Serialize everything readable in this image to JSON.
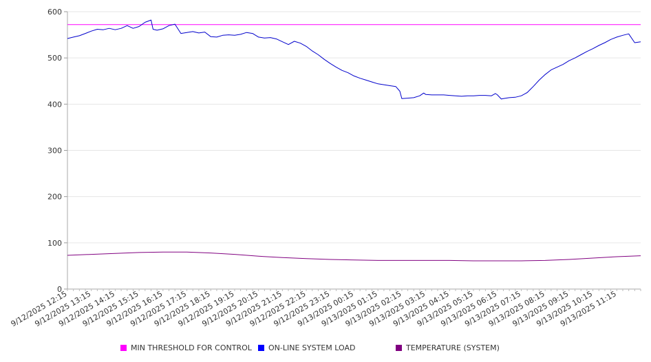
{
  "chart_data": {
    "type": "line",
    "title": "",
    "xlabel": "",
    "ylabel": "",
    "ylim": [
      0,
      600
    ],
    "yticks": [
      0,
      100,
      200,
      300,
      400,
      500,
      600
    ],
    "grid": true,
    "legend_position": "bottom",
    "x_tick_labels": [
      "9/12/2025 12:15",
      "9/12/2025 13:15",
      "9/12/2025 14:15",
      "9/12/2025 15:15",
      "9/12/2025 16:15",
      "9/12/2025 17:15",
      "9/12/2025 18:15",
      "9/12/2025 19:15",
      "9/12/2025 20:15",
      "9/12/2025 21:15",
      "9/12/2025 22:15",
      "9/12/2025 23:15",
      "9/13/2025 00:15",
      "9/13/2025 01:15",
      "9/13/2025 02:15",
      "9/13/2025 03:15",
      "9/13/2025 04:15",
      "9/13/2025 05:15",
      "9/13/2025 06:15",
      "9/13/2025 07:15",
      "9/13/2025 08:15",
      "9/13/2025 09:15",
      "9/13/2025 10:15",
      "9/13/2025 11:15"
    ],
    "x_range": [
      "9/12/2025 12:15",
      "9/13/2025 12:15"
    ],
    "series": [
      {
        "name": "MIN THRESHOLD FOR CONTROL",
        "color": "#ff00ff",
        "points": [
          [
            "9/12/2025 12:15",
            572
          ],
          [
            "9/13/2025 12:15",
            572
          ]
        ]
      },
      {
        "name": "ON-LINE SYSTEM LOAD",
        "color": "#0000cc",
        "points": [
          [
            "9/12/2025 12:15",
            542
          ],
          [
            "9/12/2025 12:30",
            545
          ],
          [
            "9/12/2025 12:45",
            548
          ],
          [
            "9/12/2025 13:00",
            553
          ],
          [
            "9/12/2025 13:15",
            558
          ],
          [
            "9/12/2025 13:30",
            562
          ],
          [
            "9/12/2025 13:45",
            561
          ],
          [
            "9/12/2025 14:00",
            564
          ],
          [
            "9/12/2025 14:15",
            561
          ],
          [
            "9/12/2025 14:30",
            564
          ],
          [
            "9/12/2025 14:45",
            570
          ],
          [
            "9/12/2025 15:00",
            564
          ],
          [
            "9/12/2025 15:15",
            568
          ],
          [
            "9/12/2025 15:30",
            577
          ],
          [
            "9/12/2025 15:45",
            582
          ],
          [
            "9/12/2025 15:50",
            562
          ],
          [
            "9/12/2025 16:00",
            560
          ],
          [
            "9/12/2025 16:15",
            563
          ],
          [
            "9/12/2025 16:30",
            570
          ],
          [
            "9/12/2025 16:45",
            573
          ],
          [
            "9/12/2025 17:00",
            553
          ],
          [
            "9/12/2025 17:15",
            555
          ],
          [
            "9/12/2025 17:30",
            557
          ],
          [
            "9/12/2025 17:45",
            554
          ],
          [
            "9/12/2025 18:00",
            556
          ],
          [
            "9/12/2025 18:15",
            546
          ],
          [
            "9/12/2025 18:30",
            545
          ],
          [
            "9/12/2025 18:45",
            549
          ],
          [
            "9/12/2025 19:00",
            550
          ],
          [
            "9/12/2025 19:15",
            549
          ],
          [
            "9/12/2025 19:30",
            551
          ],
          [
            "9/12/2025 19:45",
            555
          ],
          [
            "9/12/2025 20:00",
            553
          ],
          [
            "9/12/2025 20:15",
            545
          ],
          [
            "9/12/2025 20:30",
            543
          ],
          [
            "9/12/2025 20:45",
            544
          ],
          [
            "9/12/2025 21:00",
            541
          ],
          [
            "9/12/2025 21:15",
            535
          ],
          [
            "9/12/2025 21:30",
            529
          ],
          [
            "9/12/2025 21:45",
            536
          ],
          [
            "9/12/2025 22:00",
            532
          ],
          [
            "9/12/2025 22:15",
            525
          ],
          [
            "9/12/2025 22:30",
            515
          ],
          [
            "9/12/2025 22:45",
            507
          ],
          [
            "9/12/2025 23:00",
            497
          ],
          [
            "9/12/2025 23:15",
            488
          ],
          [
            "9/12/2025 23:30",
            480
          ],
          [
            "9/12/2025 23:45",
            473
          ],
          [
            "9/13/2025 00:00",
            468
          ],
          [
            "9/13/2025 00:15",
            461
          ],
          [
            "9/13/2025 00:30",
            456
          ],
          [
            "9/13/2025 00:45",
            452
          ],
          [
            "9/13/2025 01:00",
            448
          ],
          [
            "9/13/2025 01:15",
            444
          ],
          [
            "9/13/2025 01:30",
            442
          ],
          [
            "9/13/2025 01:45",
            440
          ],
          [
            "9/13/2025 02:00",
            438
          ],
          [
            "9/13/2025 02:10",
            428
          ],
          [
            "9/13/2025 02:15",
            412
          ],
          [
            "9/13/2025 02:30",
            413
          ],
          [
            "9/13/2025 02:45",
            414
          ],
          [
            "9/13/2025 03:00",
            418
          ],
          [
            "9/13/2025 03:10",
            424
          ],
          [
            "9/13/2025 03:15",
            421
          ],
          [
            "9/13/2025 03:30",
            420
          ],
          [
            "9/13/2025 03:45",
            420
          ],
          [
            "9/13/2025 04:00",
            420
          ],
          [
            "9/13/2025 04:15",
            419
          ],
          [
            "9/13/2025 04:30",
            418
          ],
          [
            "9/13/2025 04:45",
            417
          ],
          [
            "9/13/2025 05:00",
            418
          ],
          [
            "9/13/2025 05:15",
            418
          ],
          [
            "9/13/2025 05:30",
            419
          ],
          [
            "9/13/2025 05:45",
            419
          ],
          [
            "9/13/2025 06:00",
            418
          ],
          [
            "9/13/2025 06:10",
            423
          ],
          [
            "9/13/2025 06:15",
            420
          ],
          [
            "9/13/2025 06:25",
            411
          ],
          [
            "9/13/2025 06:30",
            412
          ],
          [
            "9/13/2025 06:45",
            414
          ],
          [
            "9/13/2025 07:00",
            415
          ],
          [
            "9/13/2025 07:15",
            418
          ],
          [
            "9/13/2025 07:30",
            425
          ],
          [
            "9/13/2025 07:45",
            438
          ],
          [
            "9/13/2025 08:00",
            452
          ],
          [
            "9/13/2025 08:15",
            464
          ],
          [
            "9/13/2025 08:30",
            474
          ],
          [
            "9/13/2025 08:45",
            480
          ],
          [
            "9/13/2025 09:00",
            486
          ],
          [
            "9/13/2025 09:15",
            494
          ],
          [
            "9/13/2025 09:30",
            500
          ],
          [
            "9/13/2025 09:45",
            507
          ],
          [
            "9/13/2025 10:00",
            514
          ],
          [
            "9/13/2025 10:15",
            520
          ],
          [
            "9/13/2025 10:30",
            527
          ],
          [
            "9/13/2025 10:45",
            533
          ],
          [
            "9/13/2025 11:00",
            540
          ],
          [
            "9/13/2025 11:15",
            545
          ],
          [
            "9/13/2025 11:30",
            549
          ],
          [
            "9/13/2025 11:45",
            552
          ],
          [
            "9/13/2025 12:00",
            533
          ],
          [
            "9/13/2025 12:15",
            535
          ]
        ]
      },
      {
        "name": "TEMPERATURE (SYSTEM)",
        "color": "#800080",
        "points": [
          [
            "9/12/2025 12:15",
            73
          ],
          [
            "9/12/2025 13:15",
            75
          ],
          [
            "9/12/2025 14:15",
            77
          ],
          [
            "9/12/2025 15:15",
            79
          ],
          [
            "9/12/2025 16:15",
            80
          ],
          [
            "9/12/2025 17:15",
            80
          ],
          [
            "9/12/2025 18:15",
            78
          ],
          [
            "9/12/2025 19:15",
            75
          ],
          [
            "9/12/2025 20:15",
            71
          ],
          [
            "9/12/2025 21:15",
            68
          ],
          [
            "9/12/2025 22:15",
            66
          ],
          [
            "9/12/2025 23:15",
            64
          ],
          [
            "9/13/2025 00:15",
            63
          ],
          [
            "9/13/2025 01:15",
            62
          ],
          [
            "9/13/2025 02:15",
            62
          ],
          [
            "9/13/2025 03:15",
            62
          ],
          [
            "9/13/2025 04:15",
            62
          ],
          [
            "9/13/2025 05:15",
            61
          ],
          [
            "9/13/2025 06:15",
            61
          ],
          [
            "9/13/2025 07:15",
            61
          ],
          [
            "9/13/2025 08:15",
            62
          ],
          [
            "9/13/2025 09:15",
            64
          ],
          [
            "9/13/2025 10:15",
            67
          ],
          [
            "9/13/2025 11:15",
            70
          ],
          [
            "9/13/2025 12:15",
            72
          ]
        ]
      }
    ]
  }
}
